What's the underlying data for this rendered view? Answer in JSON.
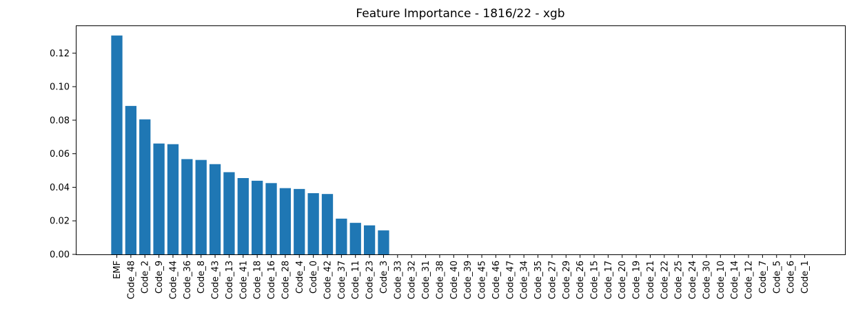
{
  "chart_data": {
    "type": "bar",
    "title": "Feature Importance - 1816/22 - xgb",
    "xlabel": "",
    "ylabel": "",
    "ylim": [
      0,
      0.1365
    ],
    "yticks": [
      "0.00",
      "0.02",
      "0.04",
      "0.06",
      "0.08",
      "0.10",
      "0.12"
    ],
    "grid": false,
    "bar_color": "#1f77b4",
    "categories": [
      "EMF",
      "Code_48",
      "Code_2",
      "Code_9",
      "Code_44",
      "Code_36",
      "Code_8",
      "Code_43",
      "Code_13",
      "Code_41",
      "Code_18",
      "Code_16",
      "Code_28",
      "Code_4",
      "Code_0",
      "Code_42",
      "Code_37",
      "Code_11",
      "Code_23",
      "Code_3",
      "Code_33",
      "Code_32",
      "Code_31",
      "Code_38",
      "Code_40",
      "Code_39",
      "Code_45",
      "Code_46",
      "Code_47",
      "Code_34",
      "Code_35",
      "Code_27",
      "Code_29",
      "Code_26",
      "Code_15",
      "Code_17",
      "Code_20",
      "Code_19",
      "Code_21",
      "Code_22",
      "Code_25",
      "Code_24",
      "Code_30",
      "Code_10",
      "Code_14",
      "Code_12",
      "Code_7",
      "Code_5",
      "Code_6",
      "Code_1"
    ],
    "values": [
      0.1305,
      0.0885,
      0.0805,
      0.0661,
      0.0657,
      0.0568,
      0.0563,
      0.0538,
      0.049,
      0.0455,
      0.0439,
      0.0425,
      0.0395,
      0.039,
      0.0365,
      0.036,
      0.0213,
      0.0188,
      0.0173,
      0.0143,
      0,
      0,
      0,
      0,
      0,
      0,
      0,
      0,
      0,
      0,
      0,
      0,
      0,
      0,
      0,
      0,
      0,
      0,
      0,
      0,
      0,
      0,
      0,
      0,
      0,
      0,
      0,
      0,
      0,
      0
    ]
  }
}
